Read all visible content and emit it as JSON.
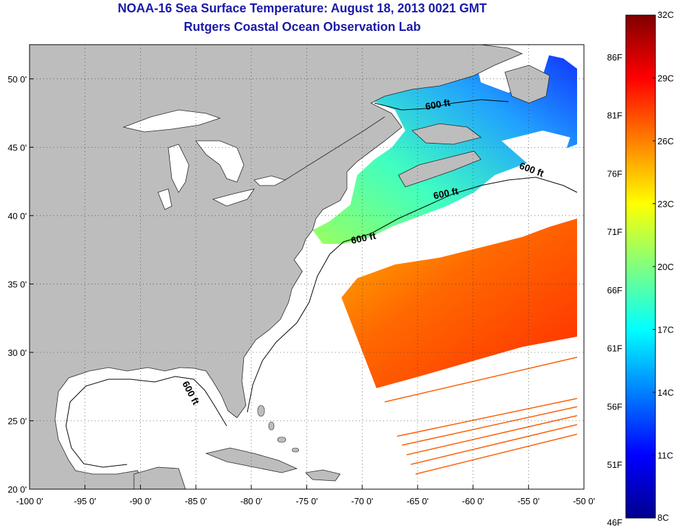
{
  "header": {
    "title": "NOAA-16 Sea Surface Temperature:  August 18, 2013 0021 GMT",
    "subtitle": "Rutgers Coastal Ocean Observation Lab"
  },
  "map": {
    "lon_range": [
      -100,
      -50
    ],
    "lat_range": [
      20,
      52.5
    ],
    "lon_ticks": [
      -100,
      -95,
      -90,
      -85,
      -80,
      -75,
      -70,
      -65,
      -60,
      -55,
      -50
    ],
    "lat_ticks": [
      20,
      25,
      30,
      35,
      40,
      45,
      50
    ],
    "lon_tick_labels": [
      "-100 0'",
      "-95 0'",
      "-90 0'",
      "-85 0'",
      "-80 0'",
      "-75 0'",
      "-70 0'",
      "-65 0'",
      "-60 0'",
      "-55 0'",
      "-50 0'"
    ],
    "lat_tick_labels": [
      "20 0'",
      "25 0'",
      "30 0'",
      "35 0'",
      "40 0'",
      "45 0'",
      "50 0'"
    ],
    "grid": true,
    "land_color": "#bdbdbd",
    "ocean_color": "#ffffff",
    "contour_labels": [
      "600 ft",
      "600 ft",
      "600 ft",
      "600 ft",
      "600 ft"
    ]
  },
  "colorbar": {
    "colormap": "jet",
    "celsius_range": [
      8,
      32
    ],
    "celsius_labels": [
      "32C",
      "29C",
      "26C",
      "23C",
      "20C",
      "17C",
      "14C",
      "11C",
      "8C"
    ],
    "fahrenheit_labels": [
      "86F",
      "81F",
      "76F",
      "71F",
      "66F",
      "61F",
      "56F",
      "51F",
      "46F"
    ]
  }
}
